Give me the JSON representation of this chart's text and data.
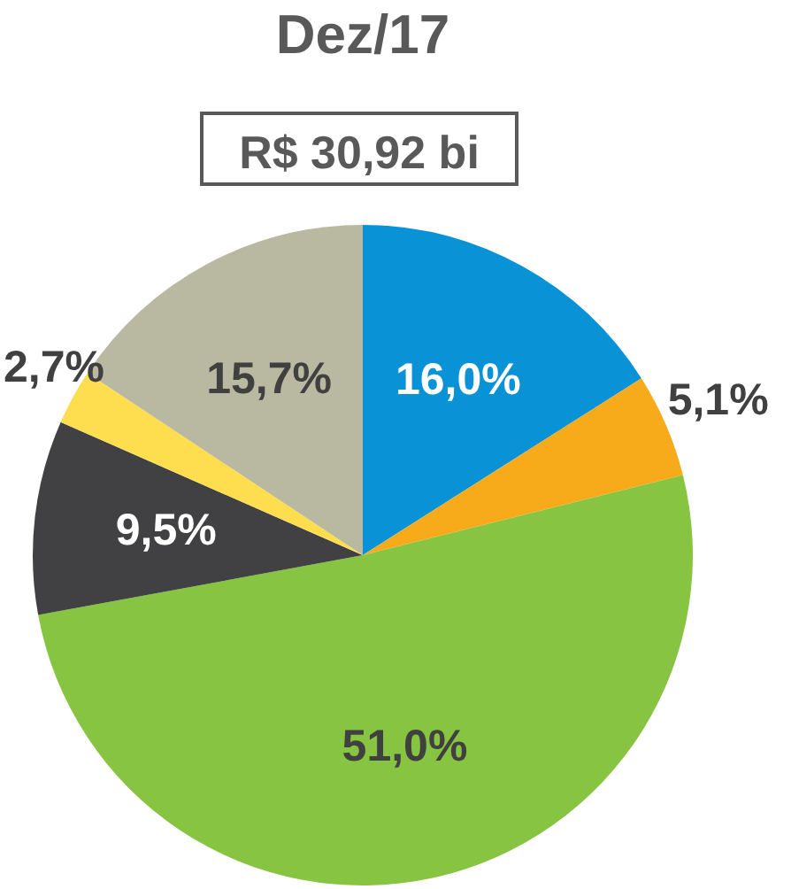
{
  "chart_data": {
    "type": "pie",
    "title": "Dez/17",
    "subtitle": "R$ 30,92 bi",
    "categories": [
      null,
      null,
      null,
      null,
      null,
      null
    ],
    "values": [
      16.0,
      5.1,
      51.0,
      9.5,
      2.7,
      15.7
    ],
    "colors": [
      "#0a92d6",
      "#f7ab1b",
      "#86c441",
      "#414143",
      "#fedd4f",
      "#b9b8a0"
    ],
    "value_labels": [
      "16,0%",
      "5,1%",
      "51,0%",
      "9,5%",
      "2,7%",
      "15,7%"
    ],
    "legend": false
  }
}
